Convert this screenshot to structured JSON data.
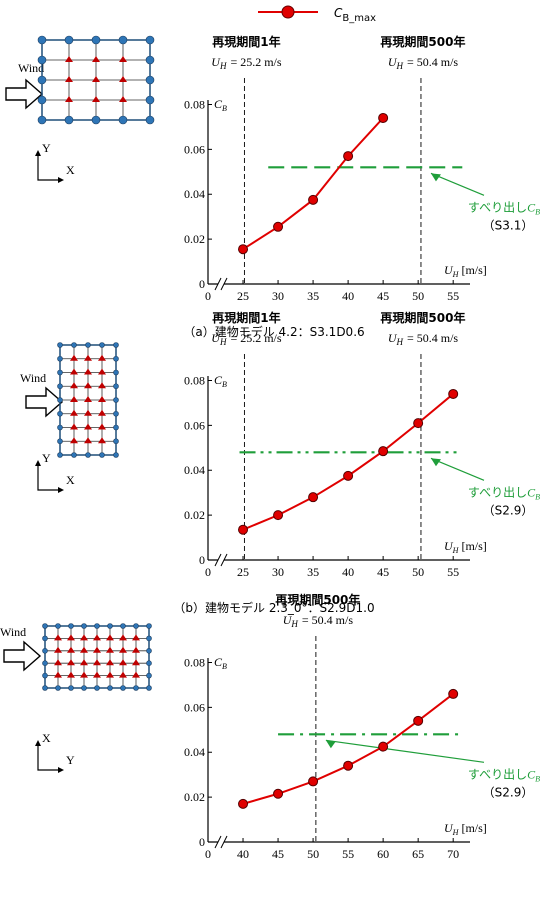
{
  "legend": {
    "name": {
      "main": "C",
      "sub": "B_max"
    },
    "color": "#e00000"
  },
  "chart_data": [
    {
      "type": "line",
      "caption": "（a）建物モデル 4.2：S3.1D0.6",
      "x": [
        25,
        30,
        35,
        40,
        45
      ],
      "values": [
        0.0155,
        0.0255,
        0.0375,
        0.057,
        0.074
      ],
      "color": "#e00000",
      "xlim": [
        20,
        57.4
      ],
      "xticks": [
        0,
        25,
        30,
        35,
        40,
        45,
        50,
        55
      ],
      "x_break": true,
      "ylim": [
        0,
        0.082
      ],
      "yticks": [
        0,
        0.02,
        0.04,
        0.06,
        0.08
      ],
      "y_label": {
        "main": "C",
        "sub": "B"
      },
      "x_label": {
        "main": "U",
        "sub": "H",
        "unit": "[m/s]"
      },
      "vlines": [
        25.2,
        50.4
      ],
      "annotations": [
        {
          "title": "再現期間1年",
          "speed": {
            "main": "U",
            "sub": "H",
            "text": "= 25.2 m/s"
          }
        },
        {
          "title": "再現期間500年",
          "speed": {
            "main": "U",
            "sub": "H",
            "text": "= 50.4 m/s"
          }
        }
      ],
      "threshold": {
        "value": 0.052,
        "from": 28.6,
        "to": 56.3,
        "style": "dashed",
        "color": "#1f9e3a",
        "label": {
          "text": "すべり出し",
          "main": "C",
          "sub": "B"
        },
        "note": "（S3.1）"
      },
      "diagram": {
        "wind": "Wind",
        "horizontal": "X",
        "vertical": "Y"
      }
    },
    {
      "type": "line",
      "caption": "（b）建物モデル 2.3_0°：S2.9D1.0",
      "x": [
        25,
        30,
        35,
        40,
        45,
        50,
        55
      ],
      "values": [
        0.0135,
        0.02,
        0.028,
        0.0375,
        0.0485,
        0.061,
        0.074
      ],
      "color": "#e00000",
      "xlim": [
        20,
        57.4
      ],
      "xticks": [
        0,
        25,
        30,
        35,
        40,
        45,
        50,
        55
      ],
      "x_break": true,
      "ylim": [
        0,
        0.082
      ],
      "yticks": [
        0,
        0.02,
        0.04,
        0.06,
        0.08
      ],
      "y_label": {
        "main": "C",
        "sub": "B"
      },
      "x_label": {
        "main": "U",
        "sub": "H",
        "unit": "[m/s]"
      },
      "vlines": [
        25.2,
        50.4
      ],
      "annotations": [
        {
          "title": "再現期間1年",
          "speed": {
            "main": "U",
            "sub": "H",
            "text": "= 25.2 m/s"
          }
        },
        {
          "title": "再現期間500年",
          "speed": {
            "main": "U",
            "sub": "H",
            "text": "= 50.4 m/s"
          }
        }
      ],
      "threshold": {
        "value": 0.048,
        "from": 24.5,
        "to": 55.7,
        "style": "dash-dot-dot",
        "color": "#1f9e3a",
        "label": {
          "text": "すべり出し",
          "main": "C",
          "sub": "B"
        },
        "note": "（S2.9）"
      },
      "diagram": {
        "wind": "Wind",
        "horizontal": "X",
        "vertical": "Y"
      }
    },
    {
      "type": "line",
      "caption": null,
      "x": [
        40,
        45,
        50,
        55,
        60,
        65,
        70
      ],
      "values": [
        0.017,
        0.0215,
        0.027,
        0.034,
        0.0425,
        0.054,
        0.066
      ],
      "color": "#e00000",
      "xlim": [
        35,
        72.4
      ],
      "xticks": [
        0,
        40,
        45,
        50,
        55,
        60,
        65,
        70
      ],
      "x_break": true,
      "ylim": [
        0,
        0.082
      ],
      "yticks": [
        0,
        0.02,
        0.04,
        0.06,
        0.08
      ],
      "y_label": {
        "main": "C",
        "sub": "B"
      },
      "x_label": {
        "main": "U",
        "sub": "H",
        "unit": "[m/s]"
      },
      "vlines": [
        50.4
      ],
      "annotations": [
        {
          "title": "再現期間500年",
          "speed": {
            "main": "U",
            "sub": "H",
            "text": "= 50.4 m/s"
          }
        }
      ],
      "threshold": {
        "value": 0.048,
        "from": 45,
        "to": 70.7,
        "style": "dash-dot",
        "color": "#1f9e3a",
        "label": {
          "text": "すべり出し",
          "main": "C",
          "sub": "B"
        },
        "note": "（S2.9）"
      },
      "diagram": {
        "wind": "Wind",
        "horizontal": "Y",
        "vertical": "X"
      }
    }
  ]
}
